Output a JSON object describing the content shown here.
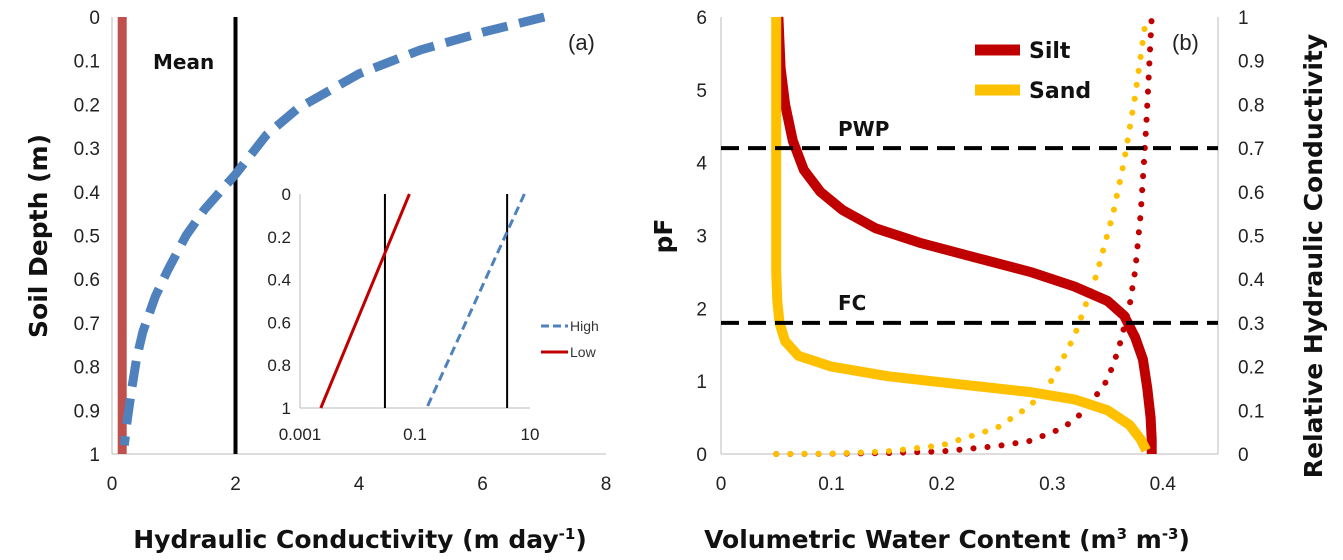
{
  "chart_data": [
    {
      "panel": "(a)",
      "type": "line",
      "xlabel": "Hydraulic Conductivity (m day",
      "xlabel_sup": "-1",
      "xlabel_end": ")",
      "ylabel": "Soil Depth (m)",
      "xlim": [
        0,
        8
      ],
      "ylim": [
        0,
        1
      ],
      "y_inverted": true,
      "xticks": [
        "0",
        "2",
        "4",
        "6",
        "8"
      ],
      "yticks": [
        "0",
        "0.1",
        "0.2",
        "0.3",
        "0.4",
        "0.5",
        "0.6",
        "0.7",
        "0.8",
        "0.9",
        "1"
      ],
      "annotation": "Mean",
      "mean_x": 2,
      "colors": {
        "high": "#4f81bd",
        "low": "#c0504d",
        "mean": "#000000"
      },
      "series": [
        {
          "name": "High",
          "style": "dashed",
          "x": [
            7.0,
            6.0,
            5.0,
            4.0,
            3.0,
            2.5,
            2.0,
            1.5,
            1.2,
            0.9,
            0.7,
            0.5,
            0.4,
            0.32,
            0.25,
            0.2
          ],
          "y": [
            0,
            0.035,
            0.075,
            0.13,
            0.21,
            0.27,
            0.36,
            0.44,
            0.5,
            0.58,
            0.64,
            0.72,
            0.78,
            0.85,
            0.92,
            0.98
          ]
        },
        {
          "name": "Low",
          "style": "solid",
          "x": [
            0.1,
            0.1,
            0.1,
            0.1,
            0.1
          ],
          "y": [
            0,
            0.25,
            0.5,
            0.75,
            1
          ]
        }
      ],
      "inset": {
        "x_scale": "log",
        "xlim": [
          0.001,
          10
        ],
        "ylim": [
          0,
          1
        ],
        "xticks": [
          "0.001",
          "0.1",
          "10"
        ],
        "yticks": [
          "0",
          "0.2",
          "0.4",
          "0.6",
          "0.8",
          "1"
        ],
        "vlines_x": [
          0.03,
          4
        ],
        "series": [
          {
            "name": "Low",
            "x": [
              0.08,
              0.0023
            ],
            "y": [
              0,
              1
            ]
          },
          {
            "name": "High",
            "x": [
              8,
              0.16
            ],
            "y": [
              0,
              1
            ]
          }
        ],
        "legend": [
          "High",
          "Low"
        ]
      }
    },
    {
      "panel": "(b)",
      "type": "line",
      "xlabel": "Volumetric Water Content (m",
      "xlabel_sup1": "3",
      "xlabel_mid": " m",
      "xlabel_sup2": "-3",
      "xlabel_end": ")",
      "ylabel": "pF",
      "ylabel_right": "Relative Hydraulic Conductivity",
      "xlim": [
        0,
        0.45
      ],
      "ylim": [
        0,
        6
      ],
      "ylim_right": [
        0,
        1
      ],
      "xticks": [
        "0",
        "0.1",
        "0.2",
        "0.3",
        "0.4"
      ],
      "yticks": [
        "0",
        "1",
        "2",
        "3",
        "4",
        "5",
        "6"
      ],
      "yticks_right": [
        "0",
        "0.1",
        "0.2",
        "0.3",
        "0.4",
        "0.5",
        "0.6",
        "0.7",
        "0.8",
        "0.9",
        "1"
      ],
      "hlines": [
        {
          "label": "PWP",
          "y": 4.2
        },
        {
          "label": "FC",
          "y": 1.8
        }
      ],
      "legend": [
        "Silt",
        "Sand"
      ],
      "colors": {
        "silt": "#c00000",
        "sand": "#ffc000"
      },
      "series": [
        {
          "name": "Silt",
          "kind": "retention",
          "x": [
            0.052,
            0.054,
            0.058,
            0.065,
            0.075,
            0.09,
            0.11,
            0.14,
            0.18,
            0.23,
            0.28,
            0.32,
            0.35,
            0.365,
            0.375,
            0.382,
            0.386,
            0.389,
            0.39,
            0.39
          ],
          "y": [
            6.0,
            5.3,
            4.8,
            4.3,
            3.9,
            3.6,
            3.35,
            3.1,
            2.9,
            2.7,
            2.5,
            2.3,
            2.1,
            1.9,
            1.6,
            1.3,
            0.9,
            0.5,
            0.2,
            0
          ]
        },
        {
          "name": "Sand",
          "kind": "retention",
          "x": [
            0.05,
            0.05,
            0.05,
            0.051,
            0.053,
            0.058,
            0.07,
            0.1,
            0.15,
            0.22,
            0.28,
            0.32,
            0.35,
            0.37,
            0.38,
            0.385
          ],
          "y": [
            6.0,
            4.0,
            2.5,
            2.1,
            1.8,
            1.55,
            1.35,
            1.2,
            1.07,
            0.95,
            0.85,
            0.75,
            0.6,
            0.4,
            0.2,
            0.05
          ]
        },
        {
          "name": "Silt",
          "kind": "conductivity",
          "x": [
            0.05,
            0.1,
            0.15,
            0.2,
            0.25,
            0.28,
            0.31,
            0.33,
            0.35,
            0.36,
            0.37,
            0.375,
            0.38,
            0.385,
            0.39
          ],
          "y": [
            0,
            0.0005,
            0.002,
            0.006,
            0.018,
            0.03,
            0.06,
            0.1,
            0.17,
            0.24,
            0.34,
            0.42,
            0.55,
            0.75,
            1.0
          ]
        },
        {
          "name": "Sand",
          "kind": "conductivity",
          "x": [
            0.05,
            0.1,
            0.15,
            0.2,
            0.25,
            0.28,
            0.3,
            0.32,
            0.34,
            0.355,
            0.365,
            0.375,
            0.385
          ],
          "y": [
            0,
            0.001,
            0.006,
            0.02,
            0.06,
            0.11,
            0.17,
            0.27,
            0.41,
            0.55,
            0.67,
            0.82,
            1.0
          ]
        }
      ]
    }
  ]
}
